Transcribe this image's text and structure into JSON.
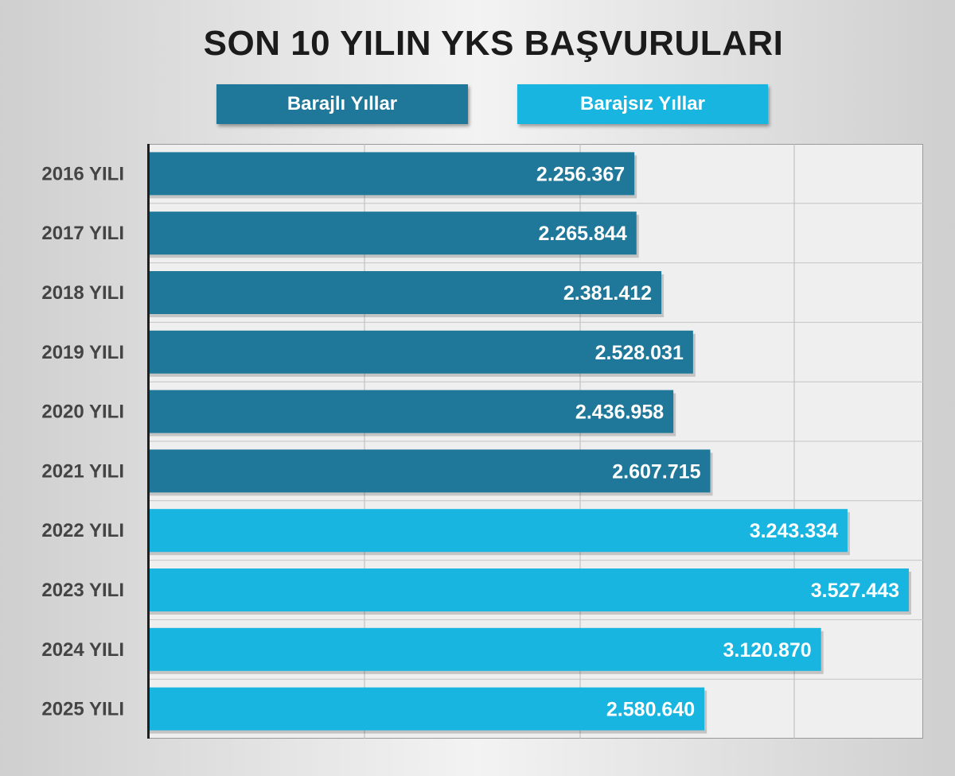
{
  "chart_data": {
    "type": "bar",
    "orientation": "horizontal",
    "title": "SON 10 YILIN YKS BAŞVURULARI",
    "categories": [
      "2016 YILI",
      "2017 YILI",
      "2018 YILI",
      "2019 YILI",
      "2020 YILI",
      "2021 YILI",
      "2022 YILI",
      "2023 YILI",
      "2024 YILI",
      "2025 YILI"
    ],
    "values": [
      2256367,
      2265844,
      2381412,
      2528031,
      2436958,
      2607715,
      3243334,
      3527443,
      3120870,
      2580640
    ],
    "value_labels": [
      "2.256.367",
      "2.265.844",
      "2.381.412",
      "2.528.031",
      "2.436.958",
      "2.607.715",
      "3.243.334",
      "3.527.443",
      "3.120.870",
      "2.580.640"
    ],
    "groups": [
      "Barajlı Yıllar",
      "Barajlı Yıllar",
      "Barajlı Yıllar",
      "Barajlı Yıllar",
      "Barajlı Yıllar",
      "Barajlı Yıllar",
      "Barajsız Yıllar",
      "Barajsız Yıllar",
      "Barajsız Yıllar",
      "Barajsız Yıllar"
    ],
    "legend": [
      {
        "name": "Barajlı Yıllar",
        "color": "#1f7899"
      },
      {
        "name": "Barajsız Yıllar",
        "color": "#18b5e0"
      }
    ],
    "legend_position": "top",
    "xlim": [
      0,
      3600000
    ],
    "grid": true,
    "xlabel": "",
    "ylabel": ""
  }
}
